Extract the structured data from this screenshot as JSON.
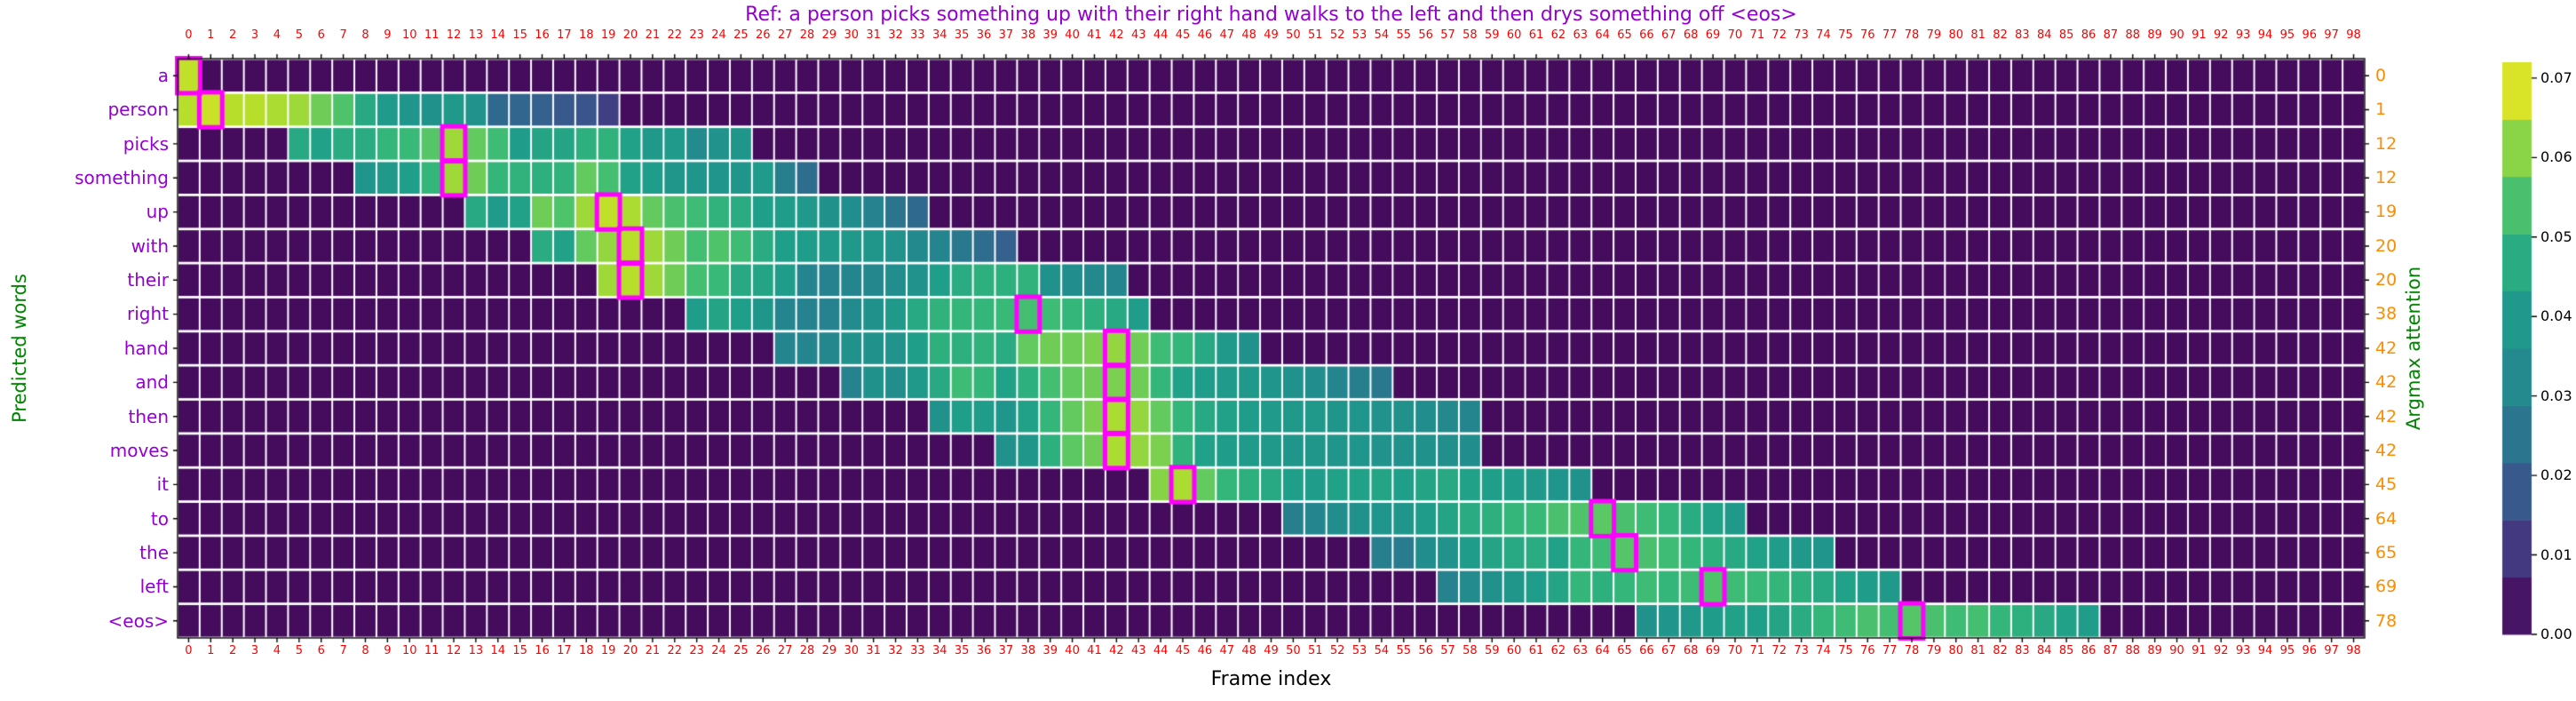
{
  "title": "Ref: a person picks something up with their right hand walks to the left and then drys something off <eos>",
  "colors": {
    "title": "#9400d3",
    "word_labels": "#9400d3",
    "frame_ticks": "#ff0000",
    "argmax_labels": "#ff8c00",
    "axis_titles": "#008000",
    "xlabel": "#000000",
    "highlight_box": "#ff00ff",
    "background": "#ffffff"
  },
  "chart_data": {
    "type": "heatmap",
    "title": "Ref: a person picks something up with their right hand walks to the left and then drys something off <eos>",
    "xlabel": "Frame index",
    "ylabel_left": "Predicted words",
    "ylabel_right": "Argmax attention",
    "colormap": "viridis",
    "vmax": 0.072,
    "background_value": 0.002,
    "grid": "white cell separators",
    "n_frames": 99,
    "frame_ticks": [
      0,
      1,
      2,
      3,
      4,
      5,
      6,
      7,
      8,
      9,
      10,
      11,
      12,
      13,
      14,
      15,
      16,
      17,
      18,
      19,
      20,
      21,
      22,
      23,
      24,
      25,
      26,
      27,
      28,
      29,
      30,
      31,
      32,
      33,
      34,
      35,
      36,
      37,
      38,
      39,
      40,
      41,
      42,
      43,
      44,
      45,
      46,
      47,
      48,
      49,
      50,
      51,
      52,
      53,
      54,
      55,
      56,
      57,
      58,
      59,
      60,
      61,
      62,
      63,
      64,
      65,
      66,
      67,
      68,
      69,
      70,
      71,
      72,
      73,
      74,
      75,
      76,
      77,
      78,
      79,
      80,
      81,
      82,
      83,
      84,
      85,
      86,
      87,
      88,
      89,
      90,
      91,
      92,
      93,
      94,
      95,
      96,
      97,
      98
    ],
    "words": [
      "a",
      "person",
      "picks",
      "something",
      "up",
      "with",
      "their",
      "right",
      "hand",
      "and",
      "then",
      "moves",
      "it",
      "to",
      "the",
      "left",
      "<eos>"
    ],
    "argmax_frames": [
      0,
      1,
      12,
      12,
      19,
      20,
      20,
      38,
      42,
      42,
      42,
      42,
      45,
      64,
      65,
      69,
      78
    ],
    "rows": [
      {
        "word": "a",
        "argmax": 0,
        "start": 0,
        "values": [
          0.066
        ]
      },
      {
        "word": "person",
        "argmax": 1,
        "start": 0,
        "values": [
          0.065,
          0.067,
          0.065,
          0.065,
          0.064,
          0.063,
          0.059,
          0.055,
          0.046,
          0.041,
          0.038,
          0.036,
          0.04,
          0.037,
          0.022,
          0.021,
          0.02,
          0.018,
          0.017,
          0.012
        ]
      },
      {
        "word": "picks",
        "argmax": 12,
        "start": 5,
        "values": [
          0.046,
          0.044,
          0.047,
          0.047,
          0.05,
          0.051,
          0.056,
          0.063,
          0.058,
          0.052,
          0.042,
          0.045,
          0.045,
          0.048,
          0.049,
          0.044,
          0.04,
          0.041,
          0.033,
          0.037,
          0.039
        ]
      },
      {
        "word": "something",
        "argmax": 12,
        "start": 8,
        "values": [
          0.038,
          0.04,
          0.043,
          0.05,
          0.063,
          0.059,
          0.05,
          0.049,
          0.048,
          0.049,
          0.058,
          0.053,
          0.044,
          0.042,
          0.039,
          0.038,
          0.038,
          0.039,
          0.041,
          0.028,
          0.023
        ]
      },
      {
        "word": "up",
        "argmax": 19,
        "start": 13,
        "values": [
          0.046,
          0.041,
          0.044,
          0.059,
          0.055,
          0.063,
          0.066,
          0.064,
          0.058,
          0.054,
          0.052,
          0.049,
          0.047,
          0.043,
          0.042,
          0.04,
          0.036,
          0.034,
          0.029,
          0.025,
          0.022
        ]
      },
      {
        "word": "with",
        "argmax": 20,
        "start": 16,
        "values": [
          0.047,
          0.044,
          0.058,
          0.062,
          0.065,
          0.063,
          0.059,
          0.053,
          0.055,
          0.052,
          0.047,
          0.043,
          0.042,
          0.041,
          0.04,
          0.039,
          0.037,
          0.032,
          0.03,
          0.026,
          0.023,
          0.02
        ]
      },
      {
        "word": "their",
        "argmax": 20,
        "start": 19,
        "values": [
          0.063,
          0.065,
          0.063,
          0.059,
          0.053,
          0.051,
          0.046,
          0.045,
          0.042,
          0.03,
          0.029,
          0.03,
          0.031,
          0.034,
          0.037,
          0.043,
          0.047,
          0.048,
          0.048,
          0.049,
          0.036,
          0.034,
          0.032,
          0.03
        ]
      },
      {
        "word": "right",
        "argmax": 38,
        "start": 23,
        "values": [
          0.042,
          0.045,
          0.043,
          0.039,
          0.03,
          0.029,
          0.029,
          0.033,
          0.036,
          0.04,
          0.046,
          0.049,
          0.05,
          0.05,
          0.051,
          0.053,
          0.052,
          0.05,
          0.048,
          0.046,
          0.042
        ]
      },
      {
        "word": "hand",
        "argmax": 42,
        "start": 27,
        "values": [
          0.03,
          0.03,
          0.031,
          0.036,
          0.036,
          0.037,
          0.043,
          0.048,
          0.048,
          0.049,
          0.047,
          0.058,
          0.059,
          0.059,
          0.06,
          0.062,
          0.059,
          0.052,
          0.05,
          0.046,
          0.04,
          0.036
        ]
      },
      {
        "word": "and",
        "argmax": 42,
        "start": 30,
        "values": [
          0.029,
          0.036,
          0.034,
          0.04,
          0.046,
          0.052,
          0.05,
          0.044,
          0.048,
          0.053,
          0.058,
          0.059,
          0.06,
          0.059,
          0.05,
          0.044,
          0.042,
          0.041,
          0.04,
          0.038,
          0.036,
          0.034,
          0.03,
          0.028,
          0.026
        ]
      },
      {
        "word": "then",
        "argmax": 42,
        "start": 34,
        "values": [
          0.036,
          0.043,
          0.042,
          0.038,
          0.044,
          0.05,
          0.058,
          0.06,
          0.064,
          0.062,
          0.058,
          0.05,
          0.046,
          0.044,
          0.042,
          0.041,
          0.04,
          0.04,
          0.039,
          0.038,
          0.037,
          0.036,
          0.034,
          0.032,
          0.03
        ]
      },
      {
        "word": "moves",
        "argmax": 42,
        "start": 37,
        "values": [
          0.036,
          0.039,
          0.048,
          0.057,
          0.059,
          0.064,
          0.062,
          0.06,
          0.049,
          0.044,
          0.042,
          0.041,
          0.04,
          0.039,
          0.039,
          0.038,
          0.038,
          0.037,
          0.036,
          0.036,
          0.035,
          0.034
        ]
      },
      {
        "word": "it",
        "argmax": 45,
        "start": 44,
        "values": [
          0.061,
          0.064,
          0.058,
          0.05,
          0.048,
          0.046,
          0.043,
          0.042,
          0.044,
          0.044,
          0.045,
          0.043,
          0.045,
          0.046,
          0.044,
          0.043,
          0.042,
          0.04,
          0.038,
          0.036
        ]
      },
      {
        "word": "to",
        "argmax": 64,
        "start": 50,
        "values": [
          0.028,
          0.03,
          0.034,
          0.036,
          0.038,
          0.039,
          0.042,
          0.045,
          0.047,
          0.048,
          0.05,
          0.051,
          0.054,
          0.055,
          0.057,
          0.054,
          0.052,
          0.05,
          0.047,
          0.044,
          0.04
        ]
      },
      {
        "word": "the",
        "argmax": 65,
        "start": 54,
        "values": [
          0.028,
          0.027,
          0.034,
          0.037,
          0.042,
          0.045,
          0.046,
          0.047,
          0.044,
          0.05,
          0.052,
          0.056,
          0.054,
          0.052,
          0.05,
          0.048,
          0.046,
          0.044,
          0.042,
          0.04,
          0.038
        ]
      },
      {
        "word": "left",
        "argmax": 69,
        "start": 57,
        "values": [
          0.029,
          0.033,
          0.036,
          0.039,
          0.042,
          0.045,
          0.05,
          0.048,
          0.05,
          0.052,
          0.05,
          0.052,
          0.055,
          0.052,
          0.051,
          0.05,
          0.048,
          0.046,
          0.044,
          0.042,
          0.04
        ]
      },
      {
        "word": "<eos>",
        "argmax": 78,
        "start": 66,
        "values": [
          0.036,
          0.038,
          0.04,
          0.042,
          0.044,
          0.043,
          0.045,
          0.047,
          0.05,
          0.052,
          0.054,
          0.053,
          0.056,
          0.054,
          0.052,
          0.053,
          0.05,
          0.048,
          0.046,
          0.044,
          0.042
        ]
      }
    ],
    "colorbar": {
      "n_bands": 10,
      "tick_labels": [
        "0.00",
        "0.01",
        "0.02",
        "0.03",
        "0.04",
        "0.05",
        "0.06",
        "0.07"
      ],
      "min": 0.0,
      "max": 0.072,
      "position": "right"
    }
  }
}
